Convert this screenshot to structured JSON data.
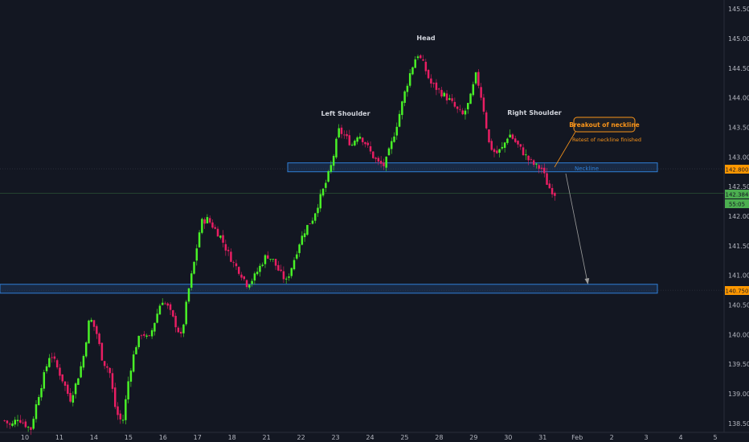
{
  "chart_data": {
    "type": "candlestick",
    "title": "",
    "xlabel": "",
    "ylabel": "",
    "ylim": [
      138.35,
      145.65
    ],
    "x_axis_labels": [
      "10",
      "11",
      "14",
      "15",
      "16",
      "17",
      "18",
      "21",
      "22",
      "23",
      "24",
      "25",
      "28",
      "29",
      "30",
      "31",
      "Feb",
      "2",
      "3",
      "4",
      "5"
    ],
    "y_axis_labels": [
      "138.500",
      "139.000",
      "139.500",
      "140.000",
      "140.500",
      "141.000",
      "141.500",
      "142.000",
      "142.500",
      "143.000",
      "143.500",
      "144.000",
      "144.500",
      "145.000",
      "145.500"
    ],
    "price_path_closes": [
      138.55,
      138.45,
      138.6,
      138.5,
      138.4,
      138.9,
      139.3,
      139.7,
      139.45,
      139.2,
      138.9,
      139.2,
      139.6,
      140.3,
      140.05,
      139.55,
      139.4,
      138.7,
      138.5,
      139.3,
      139.8,
      140.05,
      139.9,
      140.25,
      140.6,
      140.45,
      140.2,
      139.95,
      140.7,
      141.25,
      141.9,
      141.95,
      141.8,
      141.65,
      141.4,
      141.2,
      141.05,
      140.85,
      140.95,
      141.15,
      141.35,
      141.25,
      141.05,
      140.9,
      141.2,
      141.55,
      141.8,
      141.95,
      142.25,
      142.55,
      142.9,
      143.45,
      143.35,
      143.2,
      143.4,
      143.25,
      143.05,
      142.9,
      142.85,
      143.2,
      143.6,
      144.05,
      144.45,
      144.75,
      144.55,
      144.25,
      144.15,
      144.05,
      143.95,
      143.8,
      143.7,
      143.95,
      144.4,
      143.9,
      143.2,
      143.05,
      143.15,
      143.4,
      143.25,
      143.1,
      142.95,
      142.85,
      142.8,
      142.5,
      142.38
    ],
    "series": [
      {
        "name": "Neckline",
        "values": [
          142.75,
          142.9
        ]
      },
      {
        "name": "",
        "values": [
          140.7,
          140.85
        ]
      }
    ],
    "annotations": {
      "head": "Head",
      "left_shoulder": "Left Shoulder",
      "right_shoulder": "Right Shoulder",
      "breakout": "Breakout of neckline",
      "retest": "Retest of neckline finished",
      "neckline": "Neckline"
    },
    "price_tags": {
      "neckline_level": "142.800",
      "current_price": "142.384",
      "countdown": "55:05",
      "target_level": "140.750"
    },
    "target_price": 140.75,
    "grid": false,
    "colors": {
      "background": "#131722",
      "up": "#49f227",
      "down": "#e91e63",
      "zone_fill": "#1a2d4a",
      "zone_border": "#2f7fd6",
      "callout": "#f7931a",
      "current_price_tag": "#4caf50",
      "level_tag": "#ff9800",
      "arrow": "#9e9e9e"
    }
  }
}
